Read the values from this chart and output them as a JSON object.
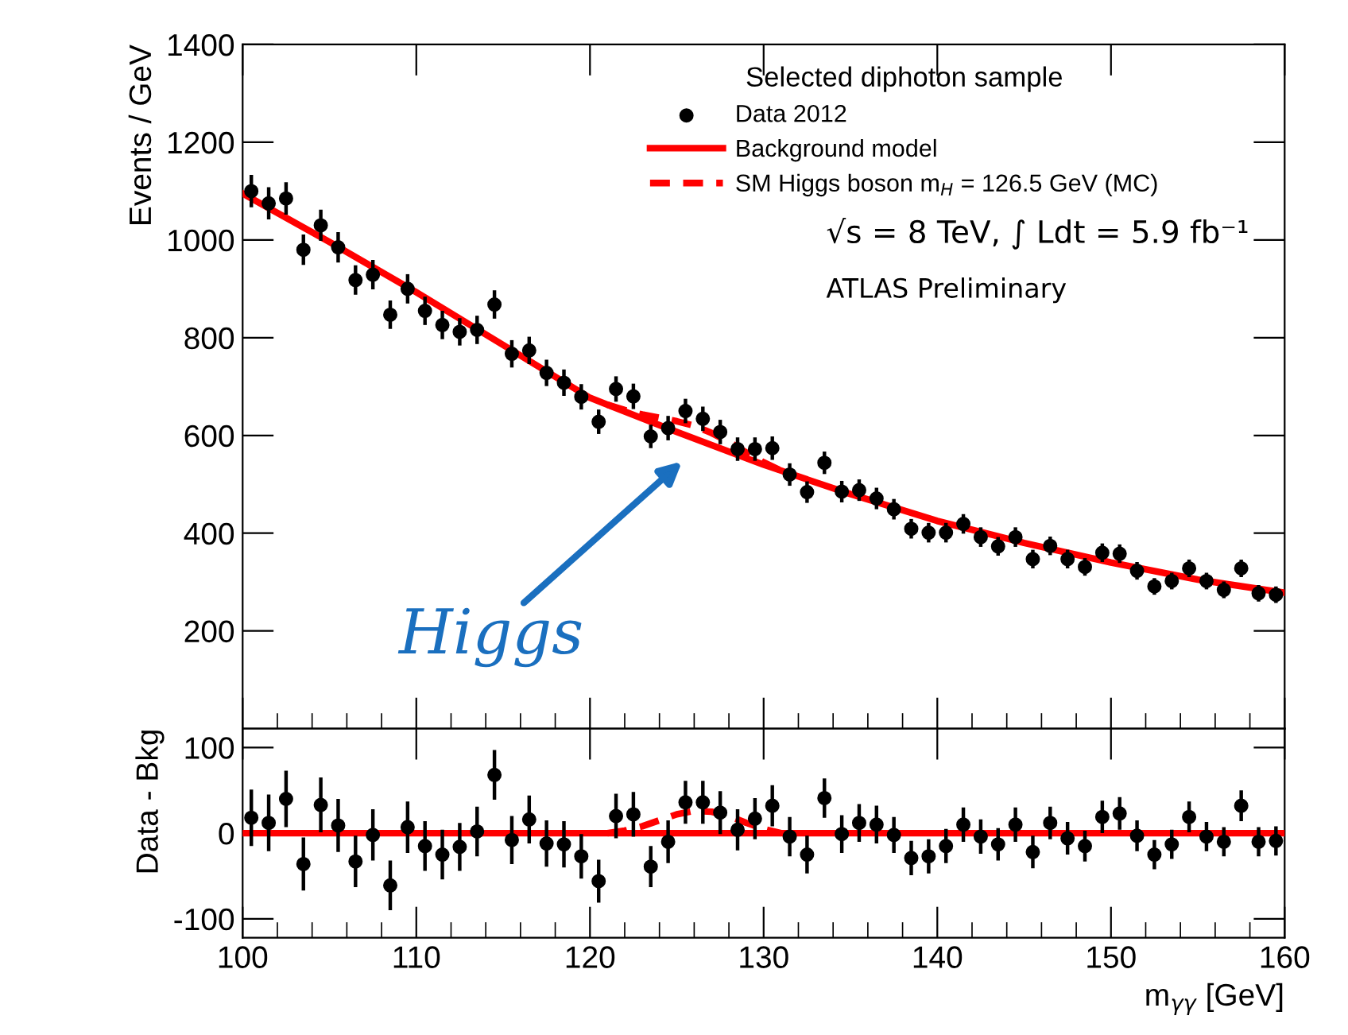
{
  "chart_data": [
    {
      "type": "scatter",
      "ylabel": "Events / GeV",
      "legend_title": "Selected diphoton sample",
      "legend": "top right",
      "tick_labels": "y",
      "xlim": [
        100,
        160
      ],
      "xticks": [
        100,
        110,
        120,
        130,
        140,
        150,
        160
      ],
      "ylim": [
        0,
        1400
      ],
      "yticks": [
        200,
        400,
        600,
        800,
        1000,
        1200,
        1400
      ],
      "grid": false,
      "annotations": [
        "√s = 8 TeV, ∫ Ldt = 5.9 fb⁻¹",
        "ATLAS Preliminary",
        "Higgs"
      ],
      "series": [
        {
          "name": "Data 2012",
          "marker": "circle",
          "color": "#000000",
          "x": [
            100.5,
            101.5,
            102.5,
            103.5,
            104.5,
            105.5,
            106.5,
            107.5,
            108.5,
            109.5,
            110.5,
            111.5,
            112.5,
            113.5,
            114.5,
            115.5,
            116.5,
            117.5,
            118.5,
            119.5,
            120.5,
            121.5,
            122.5,
            123.5,
            124.5,
            125.5,
            126.5,
            127.5,
            128.5,
            129.5,
            130.5,
            131.5,
            132.5,
            133.5,
            134.5,
            135.5,
            136.5,
            137.5,
            138.5,
            139.5,
            140.5,
            141.5,
            142.5,
            143.5,
            144.5,
            145.5,
            146.5,
            147.5,
            148.5,
            149.5,
            150.5,
            151.5,
            152.5,
            153.5,
            154.5,
            155.5,
            156.5,
            157.5,
            158.5,
            159.5
          ],
          "values": [
            1100,
            1075,
            1085,
            980,
            1030,
            985,
            918,
            929,
            847,
            900,
            855,
            826,
            812,
            816,
            868,
            767,
            774,
            728,
            708,
            679,
            628,
            695,
            680,
            598,
            615,
            650,
            634,
            607,
            572,
            572,
            574,
            520,
            484,
            544,
            485,
            488,
            471,
            449,
            409,
            401,
            401,
            419,
            392,
            373,
            392,
            347,
            374,
            347,
            331,
            360,
            358,
            323,
            291,
            302,
            328,
            302,
            284,
            328,
            277,
            274
          ],
          "errors": [
            33,
            33,
            33,
            31,
            32,
            31,
            30,
            30,
            29,
            30,
            29,
            29,
            28,
            29,
            29,
            28,
            28,
            27,
            27,
            26,
            25,
            26,
            26,
            24,
            25,
            25,
            25,
            25,
            24,
            24,
            24,
            23,
            22,
            23,
            22,
            22,
            22,
            21,
            20,
            20,
            20,
            20,
            20,
            19,
            20,
            19,
            19,
            19,
            18,
            19,
            19,
            18,
            17,
            17,
            18,
            17,
            17,
            18,
            17,
            17
          ]
        },
        {
          "name": "Background model",
          "type": "line",
          "line_style": "solid",
          "color": "#ff0000",
          "x": [
            100,
            105,
            110,
            115,
            120,
            125,
            130,
            135,
            140,
            145,
            150,
            155,
            160
          ],
          "values": [
            1095,
            996,
            893,
            785,
            677,
            607,
            540,
            480,
            425,
            380,
            340,
            305,
            278
          ]
        },
        {
          "name": "SM Higgs boson m$_{H}$ = 126.5 GeV (MC)",
          "type": "line",
          "line_style": "dashed",
          "color": "#ff0000",
          "x": [
            121,
            122,
            123,
            124,
            125,
            126,
            127,
            128,
            129,
            130,
            131
          ],
          "values": [
            663,
            652,
            643,
            636,
            629,
            620,
            605,
            587,
            565,
            545,
            528
          ]
        }
      ]
    },
    {
      "type": "scatter",
      "ylabel": "Data - Bkg",
      "xlabel": "m$_{γγ}$ [GeV]",
      "xlim": [
        100,
        160
      ],
      "xticks": [
        100,
        110,
        120,
        130,
        140,
        150,
        160
      ],
      "ylim": [
        -122,
        122
      ],
      "yticks": [
        -100,
        0,
        100
      ],
      "grid": false,
      "series": [
        {
          "marker": "circle",
          "color": "#000000",
          "x": [
            100.5,
            101.5,
            102.5,
            103.5,
            104.5,
            105.5,
            106.5,
            107.5,
            108.5,
            109.5,
            110.5,
            111.5,
            112.5,
            113.5,
            114.5,
            115.5,
            116.5,
            117.5,
            118.5,
            119.5,
            120.5,
            121.5,
            122.5,
            123.5,
            124.5,
            125.5,
            126.5,
            127.5,
            128.5,
            129.5,
            130.5,
            131.5,
            132.5,
            133.5,
            134.5,
            135.5,
            136.5,
            137.5,
            138.5,
            139.5,
            140.5,
            141.5,
            142.5,
            143.5,
            144.5,
            145.5,
            146.5,
            147.5,
            148.5,
            149.5,
            150.5,
            151.5,
            152.5,
            153.5,
            154.5,
            155.5,
            156.5,
            157.5,
            158.5,
            159.5
          ],
          "values": [
            18,
            12,
            40,
            -36,
            33,
            9,
            -33,
            -2,
            -61,
            7,
            -15,
            -25,
            -16,
            2,
            68,
            -8,
            16,
            -12,
            -13,
            -27,
            -56,
            20,
            22,
            -39,
            -10,
            36,
            36,
            24,
            4,
            17,
            32,
            -4,
            -25,
            41,
            -1,
            12,
            10,
            -2,
            -29,
            -27,
            -15,
            10,
            -4,
            -13,
            10,
            -22,
            12,
            -6,
            -15,
            19,
            23,
            -3,
            -25,
            -13,
            19,
            -4,
            -10,
            32,
            -10,
            -9
          ],
          "errors": [
            33,
            33,
            33,
            31,
            32,
            31,
            30,
            30,
            29,
            30,
            29,
            29,
            28,
            29,
            29,
            28,
            28,
            27,
            27,
            26,
            25,
            26,
            26,
            24,
            25,
            25,
            25,
            25,
            24,
            24,
            24,
            23,
            22,
            23,
            22,
            22,
            22,
            21,
            20,
            20,
            20,
            20,
            20,
            19,
            20,
            19,
            19,
            19,
            18,
            19,
            19,
            18,
            17,
            17,
            18,
            17,
            17,
            18,
            17,
            17
          ]
        },
        {
          "type": "line",
          "line_style": "solid",
          "color": "#ff0000",
          "x": [
            100,
            160
          ],
          "values": [
            0,
            0
          ]
        },
        {
          "type": "line",
          "line_style": "dashed",
          "color": "#ff0000",
          "x": [
            121,
            122,
            123,
            124,
            125,
            126,
            127,
            128,
            129,
            130,
            131
          ],
          "values": [
            0,
            3,
            8,
            15,
            22,
            26,
            25,
            20,
            12,
            5,
            0
          ]
        }
      ]
    }
  ]
}
